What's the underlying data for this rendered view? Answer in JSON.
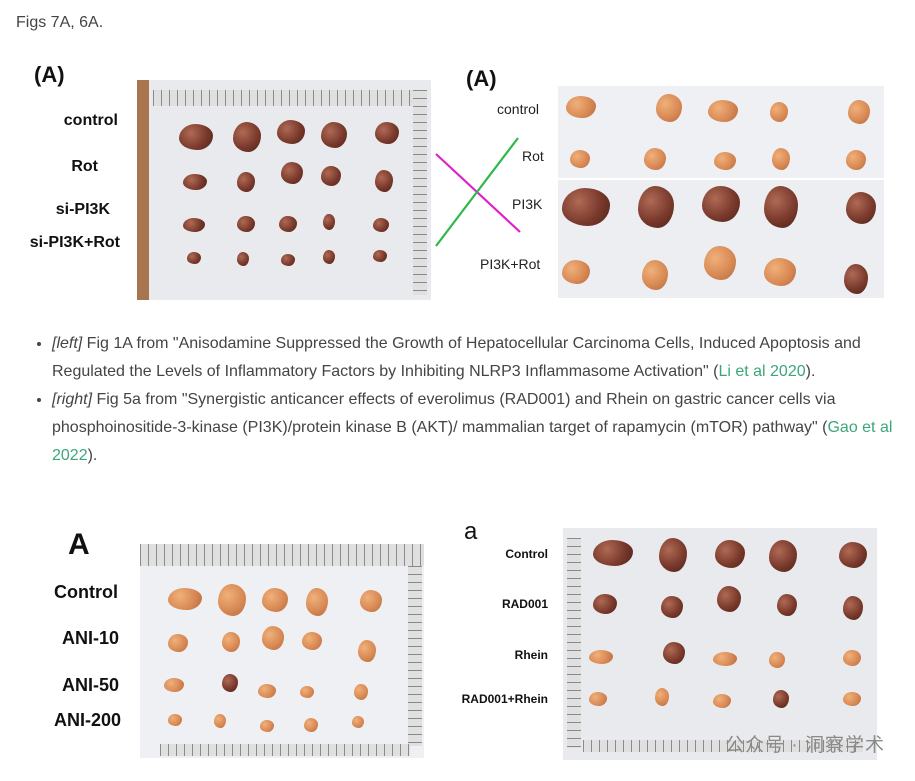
{
  "caption": "Figs 7A, 6A.",
  "top_left": {
    "panel": "(A)",
    "rows": [
      "control",
      "Rot",
      "si-PI3K",
      "si-PI3K+Rot"
    ]
  },
  "top_right": {
    "panel": "(A)",
    "rows": [
      "control",
      "Rot",
      "PI3K",
      "PI3K+Rot"
    ]
  },
  "refs": [
    {
      "tag": "[left]",
      "text": " Fig 1A from \"Anisodamine Suppressed the Growth of Hepatocellular Carcinoma Cells, Induced Apoptosis and Regulated the Levels of Inflammatory Factors by Inhibiting NLRP3 Inflammasome Activation\" (",
      "link": "Li et al 2020",
      "end": ")."
    },
    {
      "tag": "[right]",
      "text": " Fig 5a from \"Synergistic anticancer effects of everolimus (RAD001) and Rhein on gastric cancer cells via phosphoinositide-3-kinase (PI3K)/protein kinase B (AKT)/ mammalian target of rapamycin (mTOR) pathway\" (",
      "link": "Gao et al 2022",
      "end": ")."
    }
  ],
  "bottom_left": {
    "panel": "A",
    "rows": [
      "Control",
      "ANI-10",
      "ANI-50",
      "ANI-200"
    ]
  },
  "bottom_right": {
    "panel": "a",
    "rows": [
      "Control",
      "RAD001",
      "Rhein",
      "RAD001+Rhein"
    ]
  },
  "watermark": "公众号 · 洞察学术",
  "colors": {
    "link": "#3aa77a",
    "cross_magenta": "#e020c8",
    "cross_green": "#2db84a"
  }
}
